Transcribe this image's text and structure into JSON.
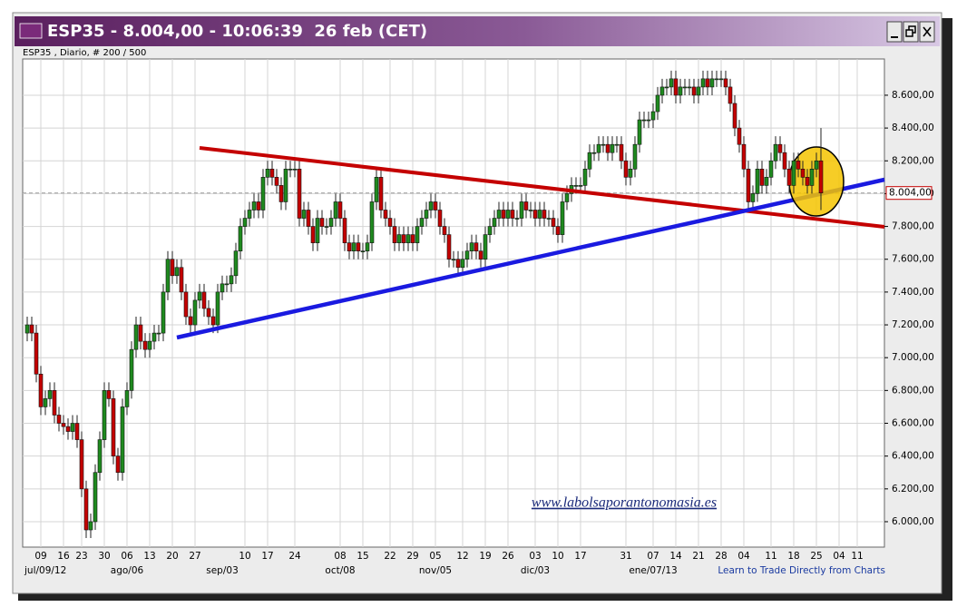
{
  "chart_data": {
    "type": "candlestick",
    "title": "ESP35 - 8.004,00 - 10:06:39  26 feb (CET)",
    "subtitle": "ESP35 , Diario, # 200 / 500",
    "watermark": "www.labolsaporantonomasia.es",
    "footer_link": "Learn to Trade Directly from Charts",
    "up_color": "#1f8a1f",
    "down_color": "#c40000",
    "ylim": [
      5845,
      8821
    ],
    "yticks": [
      {
        "value": 6000,
        "label": "6.000,00"
      },
      {
        "value": 6200,
        "label": "6.200,00"
      },
      {
        "value": 6400,
        "label": "6.400,00"
      },
      {
        "value": 6600,
        "label": "6.600,00"
      },
      {
        "value": 6800,
        "label": "6.800,00"
      },
      {
        "value": 7000,
        "label": "7.000,00"
      },
      {
        "value": 7200,
        "label": "7.200,00"
      },
      {
        "value": 7400,
        "label": "7.400,00"
      },
      {
        "value": 7600,
        "label": "7.600,00"
      },
      {
        "value": 7800,
        "label": "7.800,00"
      },
      {
        "value": 8000,
        "label": "8.000,00"
      },
      {
        "value": 8200,
        "label": "8.200,00"
      },
      {
        "value": 8400,
        "label": "8.400,00"
      },
      {
        "value": 8600,
        "label": "8.600,00"
      }
    ],
    "last_price": {
      "value": 8004,
      "label": "8.004,00"
    },
    "grid": true,
    "categories": [
      null,
      null,
      null,
      "09",
      null,
      null,
      null,
      null,
      "16",
      null,
      null,
      null,
      "23",
      null,
      null,
      null,
      null,
      "30",
      null,
      null,
      null,
      null,
      "06",
      null,
      null,
      null,
      null,
      "13",
      null,
      null,
      null,
      null,
      "20",
      null,
      null,
      null,
      null,
      "27",
      null,
      null,
      null,
      null,
      null,
      null,
      null,
      null,
      null,
      null,
      "10",
      null,
      null,
      null,
      null,
      "17",
      null,
      null,
      null,
      null,
      null,
      "24",
      null,
      null,
      null,
      null,
      null,
      null,
      null,
      null,
      null,
      "08",
      null,
      null,
      null,
      null,
      "15",
      null,
      null,
      null,
      null,
      null,
      "22",
      null,
      null,
      null,
      null,
      "29",
      null,
      null,
      null,
      null,
      "05",
      null,
      null,
      null,
      null,
      null,
      "12",
      null,
      null,
      null,
      null,
      "19",
      null,
      null,
      null,
      null,
      "26",
      null,
      null,
      null,
      null,
      null,
      "03",
      null,
      null,
      null,
      null,
      "10",
      null,
      null,
      null,
      null,
      "17",
      null,
      null,
      null,
      null,
      null,
      null,
      null,
      null,
      null,
      "31",
      null,
      null,
      null,
      null,
      null,
      "07",
      null,
      null,
      null,
      null,
      "14",
      null,
      null,
      null,
      null,
      "21",
      null,
      null,
      null,
      null,
      "28",
      null,
      null,
      null,
      null,
      "04",
      null,
      null,
      null,
      null,
      null,
      "11",
      null,
      null,
      null,
      null,
      "18",
      null,
      null,
      null,
      null,
      "25",
      null,
      null,
      null,
      null,
      "04",
      null,
      null,
      null,
      "11"
    ],
    "months": [
      null,
      null,
      null,
      "jul/09/12",
      null,
      null,
      null,
      null,
      null,
      null,
      null,
      null,
      null,
      null,
      null,
      null,
      null,
      null,
      null,
      null,
      null,
      null,
      "ago/06",
      null,
      null,
      null,
      null,
      null,
      null,
      null,
      null,
      null,
      null,
      null,
      null,
      null,
      null,
      null,
      null,
      null,
      null,
      null,
      null,
      "sep/03",
      null,
      null,
      null,
      null,
      null,
      null,
      null,
      null,
      null,
      null,
      null,
      null,
      null,
      null,
      null,
      null,
      null,
      null,
      null,
      null,
      null,
      null,
      null,
      null,
      null,
      "oct/08",
      null,
      null,
      null,
      null,
      null,
      null,
      null,
      null,
      null,
      null,
      null,
      null,
      null,
      null,
      null,
      null,
      null,
      null,
      null,
      null,
      "nov/05",
      null,
      null,
      null,
      null,
      null,
      null,
      null,
      null,
      null,
      null,
      null,
      null,
      null,
      null,
      null,
      null,
      null,
      null,
      null,
      null,
      null,
      "dic/03",
      null,
      null,
      null,
      null,
      null,
      null,
      null,
      null,
      null,
      null,
      null,
      null,
      null,
      null,
      null,
      null,
      null,
      null,
      null,
      null,
      null,
      null,
      null,
      null,
      null,
      "ene/07/13",
      null,
      null,
      null,
      null,
      null,
      null,
      null,
      null,
      null,
      null,
      null,
      null,
      null,
      null,
      null,
      null,
      null,
      null,
      null,
      null,
      null,
      null,
      null,
      null,
      null,
      null,
      null,
      null,
      null,
      null,
      null,
      null,
      null,
      null,
      null,
      null,
      null,
      null,
      null,
      null,
      null,
      null,
      null,
      null,
      null
    ],
    "open": [
      7150,
      7200,
      7150,
      6900,
      6700,
      6750,
      6800,
      6650,
      6600,
      6580,
      6550,
      6600,
      6500,
      6200,
      5950,
      6000,
      6300,
      6500,
      6800,
      6750,
      6400,
      6300,
      6700,
      6800,
      7050,
      7200,
      7100,
      7050,
      7100,
      7150,
      7150,
      7400,
      7600,
      7500,
      7550,
      7400,
      7250,
      7200,
      7350,
      7400,
      7300,
      7250,
      7200,
      7400,
      7450,
      7450,
      7500,
      7650,
      7800,
      7850,
      7900,
      7950,
      7900,
      8100,
      8150,
      8100,
      8050,
      7950,
      8150,
      8150,
      8150,
      7850,
      7900,
      7800,
      7700,
      7850,
      7800,
      7800,
      7850,
      7950,
      7850,
      7700,
      7650,
      7700,
      7650,
      7650,
      7700,
      7950,
      8100,
      7900,
      7850,
      7800,
      7700,
      7750,
      7700,
      7750,
      7700,
      7800,
      7850,
      7900,
      7950,
      7900,
      7800,
      7750,
      7600,
      7600,
      7550,
      7600,
      7650,
      7700,
      7650,
      7600,
      7750,
      7800,
      7850,
      7900,
      7850,
      7900,
      7850,
      7850,
      7950,
      7900,
      7900,
      7850,
      7900,
      7850,
      7850,
      7800,
      7750,
      7950,
      8000,
      8050,
      8050,
      8050,
      8150,
      8250,
      8250,
      8300,
      8300,
      8250,
      8300,
      8300,
      8200,
      8100,
      8150,
      8300,
      8450,
      8450,
      8450,
      8500,
      8600,
      8650,
      8650,
      8700,
      8600,
      8650,
      8650,
      8650,
      8600,
      8650,
      8700,
      8650,
      8700,
      8700,
      8700,
      8650,
      8550,
      8400,
      8300,
      8150,
      7950,
      8000,
      8150,
      8050,
      8100,
      8200,
      8300,
      8250,
      8150,
      8050,
      8200,
      8150,
      8100,
      8050,
      8150,
      8200,
      null,
      null,
      null,
      null,
      null,
      null,
      null,
      null
    ],
    "high": [
      7250,
      7250,
      7200,
      6950,
      6800,
      6850,
      6850,
      6700,
      6650,
      6630,
      6650,
      6650,
      6550,
      6250,
      6050,
      6350,
      6550,
      6850,
      6850,
      6800,
      6450,
      6750,
      6850,
      7100,
      7250,
      7250,
      7150,
      7150,
      7200,
      7200,
      7450,
      7650,
      7650,
      7600,
      7600,
      7450,
      7300,
      7400,
      7450,
      7450,
      7350,
      7300,
      7450,
      7500,
      7500,
      7550,
      7700,
      7850,
      7900,
      7950,
      8000,
      8000,
      8150,
      8200,
      8200,
      8150,
      8100,
      8200,
      8200,
      8200,
      8200,
      7950,
      7950,
      7850,
      7900,
      7900,
      7850,
      7900,
      8000,
      8000,
      7900,
      7750,
      7750,
      7750,
      7700,
      7750,
      8000,
      8150,
      8150,
      7950,
      7900,
      7850,
      7800,
      7800,
      7800,
      7800,
      7850,
      7900,
      7950,
      8000,
      8000,
      7950,
      7850,
      7800,
      7650,
      7650,
      7650,
      7700,
      7750,
      7750,
      7700,
      7800,
      7850,
      7900,
      7950,
      7950,
      7950,
      7950,
      7900,
      8000,
      8000,
      7950,
      7950,
      7950,
      7950,
      7900,
      7900,
      7850,
      8000,
      8050,
      8100,
      8100,
      8100,
      8200,
      8300,
      8300,
      8350,
      8350,
      8350,
      8350,
      8350,
      8350,
      8250,
      8200,
      8350,
      8500,
      8500,
      8500,
      8550,
      8650,
      8700,
      8700,
      8750,
      8750,
      8700,
      8700,
      8700,
      8700,
      8700,
      8750,
      8750,
      8750,
      8750,
      8750,
      8750,
      8700,
      8600,
      8450,
      8350,
      8200,
      8050,
      8200,
      8200,
      8150,
      8250,
      8350,
      8350,
      8300,
      8200,
      8250,
      8250,
      8200,
      8150,
      8200,
      8250,
      8400,
      null,
      null,
      null,
      null,
      null,
      null,
      null,
      null
    ],
    "low": [
      7100,
      7100,
      6850,
      6650,
      6650,
      6700,
      6600,
      6550,
      6530,
      6500,
      6500,
      6450,
      6150,
      5900,
      5900,
      5950,
      6250,
      6450,
      6700,
      6350,
      6250,
      6250,
      6650,
      6750,
      7000,
      7050,
      7000,
      7000,
      7050,
      7100,
      7100,
      7350,
      7450,
      7450,
      7350,
      7200,
      7150,
      7150,
      7300,
      7250,
      7200,
      7150,
      7150,
      7350,
      7400,
      7400,
      7450,
      7600,
      7750,
      7800,
      7850,
      7850,
      7850,
      8050,
      8050,
      8000,
      7900,
      7900,
      8100,
      8100,
      7800,
      7800,
      7750,
      7650,
      7650,
      7750,
      7750,
      7750,
      7800,
      7800,
      7650,
      7600,
      7600,
      7600,
      7600,
      7600,
      7650,
      7900,
      7850,
      7800,
      7750,
      7650,
      7650,
      7650,
      7650,
      7650,
      7650,
      7750,
      7800,
      7850,
      7850,
      7750,
      7700,
      7550,
      7550,
      7500,
      7500,
      7550,
      7600,
      7600,
      7550,
      7550,
      7700,
      7750,
      7800,
      7800,
      7800,
      7800,
      7800,
      7800,
      7850,
      7850,
      7800,
      7800,
      7800,
      7800,
      7750,
      7700,
      7700,
      7900,
      7950,
      8000,
      8000,
      8000,
      8100,
      8200,
      8200,
      8250,
      8200,
      8200,
      8250,
      8150,
      8050,
      8050,
      8100,
      8250,
      8400,
      8400,
      8400,
      8450,
      8550,
      8600,
      8600,
      8550,
      8550,
      8600,
      8600,
      8550,
      8550,
      8600,
      8600,
      8600,
      8650,
      8650,
      8600,
      8500,
      8350,
      8250,
      8100,
      7900,
      7900,
      7950,
      8000,
      8000,
      8050,
      8150,
      8200,
      8100,
      8000,
      8000,
      8100,
      8050,
      8000,
      8000,
      8100,
      7900,
      null,
      null,
      null,
      null,
      null,
      null,
      null,
      null
    ],
    "close": [
      7200,
      7150,
      6900,
      6700,
      6750,
      6800,
      6650,
      6600,
      6580,
      6550,
      6600,
      6500,
      6200,
      5950,
      6000,
      6300,
      6500,
      6800,
      6750,
      6400,
      6300,
      6700,
      6800,
      7050,
      7200,
      7100,
      7050,
      7100,
      7150,
      7150,
      7400,
      7600,
      7500,
      7550,
      7400,
      7250,
      7200,
      7350,
      7400,
      7300,
      7250,
      7200,
      7400,
      7450,
      7450,
      7500,
      7650,
      7800,
      7850,
      7900,
      7950,
      7900,
      8100,
      8150,
      8100,
      8050,
      7950,
      8150,
      8150,
      8150,
      7850,
      7900,
      7800,
      7700,
      7850,
      7800,
      7800,
      7850,
      7950,
      7850,
      7700,
      7650,
      7700,
      7650,
      7650,
      7700,
      7950,
      8100,
      7900,
      7850,
      7800,
      7700,
      7750,
      7700,
      7750,
      7700,
      7800,
      7850,
      7900,
      7950,
      7900,
      7800,
      7750,
      7600,
      7600,
      7550,
      7600,
      7650,
      7700,
      7650,
      7600,
      7750,
      7800,
      7850,
      7900,
      7850,
      7900,
      7850,
      7850,
      7950,
      7900,
      7900,
      7850,
      7900,
      7850,
      7850,
      7800,
      7750,
      7950,
      8000,
      8050,
      8050,
      8050,
      8150,
      8250,
      8250,
      8300,
      8300,
      8250,
      8300,
      8300,
      8200,
      8100,
      8150,
      8300,
      8450,
      8450,
      8450,
      8500,
      8600,
      8650,
      8650,
      8700,
      8600,
      8650,
      8650,
      8650,
      8600,
      8650,
      8700,
      8650,
      8700,
      8700,
      8700,
      8650,
      8550,
      8400,
      8300,
      8150,
      7950,
      8000,
      8150,
      8050,
      8100,
      8200,
      8300,
      8250,
      8150,
      8050,
      8200,
      8150,
      8100,
      8050,
      8150,
      8200,
      8004,
      null,
      null,
      null,
      null,
      null,
      null,
      null,
      null
    ]
  }
}
